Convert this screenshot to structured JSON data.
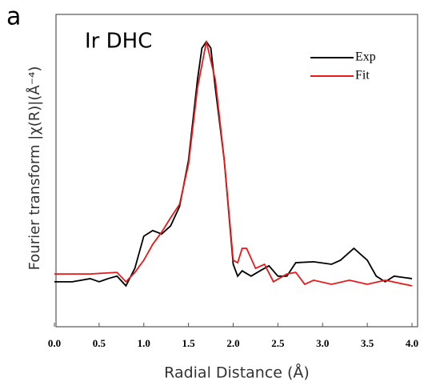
{
  "chart_data": {
    "type": "line",
    "panel_label": "a",
    "annotation": "Ir DHC",
    "xlabel": "Radial Distance (Å)",
    "ylabel": "Fourier transform |χ(R)|(Å⁻⁴)",
    "xlim": [
      0,
      4
    ],
    "ylim": [
      0,
      1
    ],
    "xticks": [
      {
        "value": 0,
        "label": "0.0"
      },
      0.5,
      {
        "value": 1,
        "label": "1.0"
      },
      1.5,
      {
        "value": 2,
        "label": "2.0"
      },
      2.5,
      {
        "value": 3,
        "label": "3.0"
      },
      3.5,
      {
        "value": 4,
        "label": "4.0"
      }
    ],
    "legend": "upper right",
    "series": [
      {
        "name": "Exp",
        "color": "#000000",
        "x": [
          0.0,
          0.2,
          0.4,
          0.5,
          0.6,
          0.7,
          0.8,
          0.9,
          1.0,
          1.1,
          1.2,
          1.3,
          1.4,
          1.5,
          1.6,
          1.65,
          1.7,
          1.75,
          1.8,
          1.9,
          2.0,
          2.05,
          2.1,
          2.2,
          2.3,
          2.4,
          2.5,
          2.6,
          2.7,
          2.9,
          3.1,
          3.2,
          3.35,
          3.5,
          3.6,
          3.7,
          3.8,
          4.0
        ],
        "values": [
          0.144,
          0.144,
          0.154,
          0.144,
          0.154,
          0.162,
          0.131,
          0.187,
          0.29,
          0.308,
          0.297,
          0.323,
          0.385,
          0.533,
          0.79,
          0.892,
          0.913,
          0.892,
          0.764,
          0.533,
          0.2,
          0.162,
          0.179,
          0.162,
          0.179,
          0.195,
          0.162,
          0.162,
          0.205,
          0.208,
          0.2,
          0.213,
          0.251,
          0.213,
          0.162,
          0.144,
          0.162,
          0.154
        ]
      },
      {
        "name": "Fit",
        "color": "#e8191a",
        "x": [
          0.0,
          0.4,
          0.7,
          0.8,
          0.9,
          1.0,
          1.1,
          1.2,
          1.3,
          1.4,
          1.5,
          1.6,
          1.7,
          1.8,
          1.9,
          2.0,
          2.05,
          2.1,
          2.15,
          2.25,
          2.35,
          2.45,
          2.6,
          2.7,
          2.8,
          2.9,
          3.1,
          3.3,
          3.5,
          3.7,
          4.0
        ],
        "values": [
          0.169,
          0.169,
          0.174,
          0.144,
          0.174,
          0.213,
          0.264,
          0.303,
          0.349,
          0.392,
          0.521,
          0.764,
          0.913,
          0.79,
          0.533,
          0.213,
          0.205,
          0.251,
          0.251,
          0.187,
          0.2,
          0.144,
          0.169,
          0.174,
          0.136,
          0.149,
          0.136,
          0.149,
          0.136,
          0.149,
          0.131
        ]
      }
    ]
  }
}
